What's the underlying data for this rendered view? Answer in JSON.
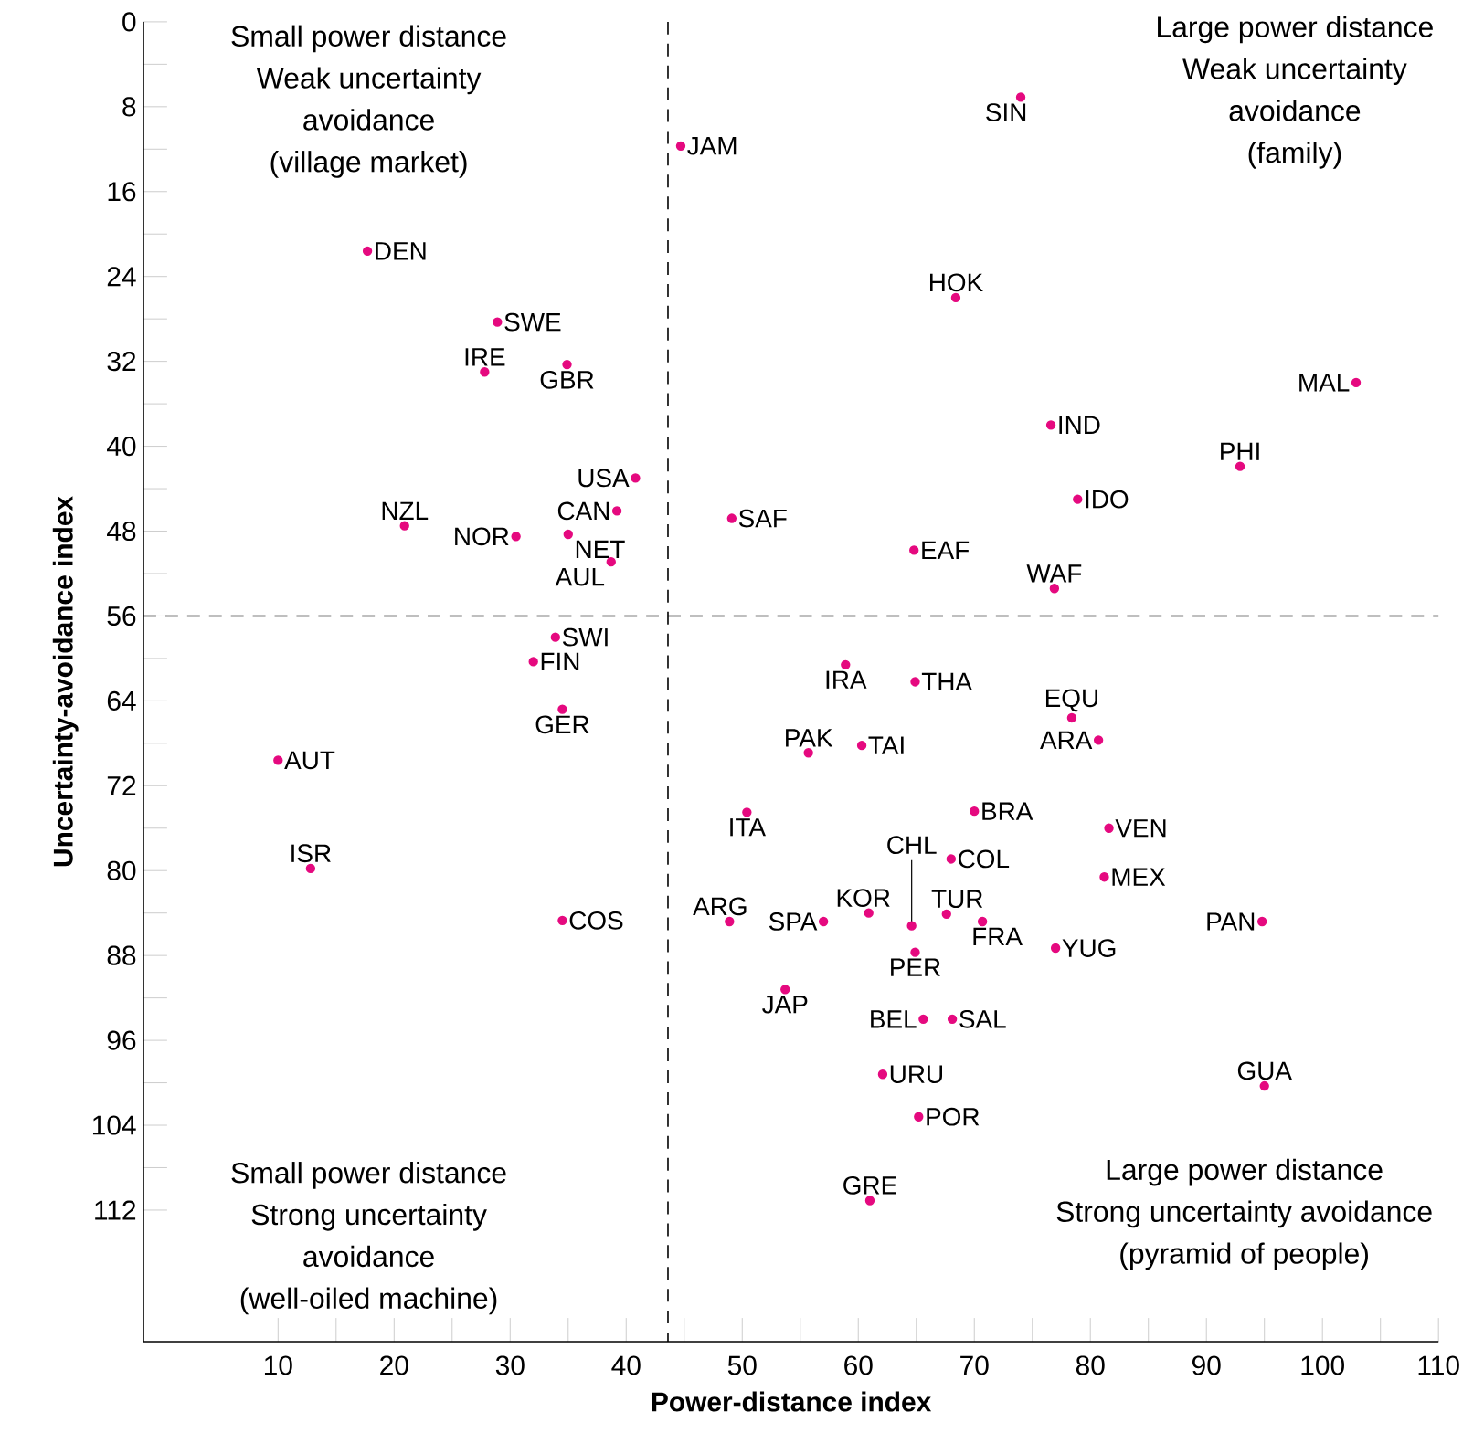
{
  "chart_data": {
    "type": "scatter",
    "xlabel": "Power-distance index",
    "ylabel": "Uncertainty-avoidance index",
    "xlim": [
      -1.6,
      110
    ],
    "ylim": [
      124.4,
      0
    ],
    "xticks": [
      10,
      {
        "value": 15,
        "label": null
      },
      20,
      {
        "value": 25,
        "label": null
      },
      30,
      {
        "value": 35,
        "label": null
      },
      40,
      {
        "value": 45,
        "label": null
      },
      50,
      {
        "value": 55,
        "label": null
      },
      60,
      {
        "value": 65,
        "label": null
      },
      70,
      {
        "value": 75,
        "label": null
      },
      80,
      {
        "value": 85,
        "label": null
      },
      90,
      {
        "value": 95,
        "label": null
      },
      100,
      {
        "value": 105,
        "label": null
      },
      110
    ],
    "yticks": [
      0,
      {
        "value": 4,
        "label": null
      },
      8,
      {
        "value": 12,
        "label": null
      },
      16,
      {
        "value": 20,
        "label": null
      },
      24,
      {
        "value": 28,
        "label": null
      },
      32,
      {
        "value": 36,
        "label": null
      },
      40,
      {
        "value": 44,
        "label": null
      },
      48,
      {
        "value": 52,
        "label": null
      },
      56,
      {
        "value": 60,
        "label": null
      },
      64,
      {
        "value": 68,
        "label": null
      },
      72,
      {
        "value": 76,
        "label": null
      },
      80,
      {
        "value": 84,
        "label": null
      },
      88,
      {
        "value": 92,
        "label": null
      },
      96,
      {
        "value": 100,
        "label": null
      },
      104,
      {
        "value": 108,
        "label": null
      },
      112
    ],
    "marker": "circle",
    "color": "#e5097f",
    "x": [
      44.7,
      17.7,
      28.9,
      27.8,
      34.9,
      40.8,
      39.2,
      20.9,
      30.5,
      35.0,
      38.7,
      49.1,
      74.0,
      68.4,
      102.9,
      76.6,
      92.9,
      78.9,
      64.8,
      76.9,
      33.9,
      32.0,
      34.5,
      10.0,
      12.8,
      34.5,
      48.9,
      50.4,
      58.9,
      64.9,
      78.4,
      80.7,
      55.7,
      60.3,
      70.0,
      81.6,
      68.0,
      81.2,
      60.9,
      57.0,
      64.6,
      67.6,
      70.7,
      94.8,
      77.0,
      64.9,
      53.7,
      65.6,
      68.1,
      62.1,
      95.0,
      65.2,
      61.0
    ],
    "values": [
      11.7,
      21.6,
      28.3,
      33.0,
      32.3,
      43.0,
      46.1,
      47.5,
      48.5,
      48.3,
      50.9,
      46.8,
      7.1,
      26.0,
      34.0,
      38.0,
      41.9,
      45.0,
      49.8,
      53.4,
      58.0,
      60.3,
      64.8,
      69.6,
      79.8,
      84.7,
      84.8,
      74.5,
      60.6,
      62.2,
      65.6,
      67.7,
      68.9,
      68.2,
      74.4,
      76.0,
      78.9,
      80.6,
      84.0,
      84.8,
      85.2,
      84.1,
      84.8,
      84.8,
      87.3,
      87.7,
      91.2,
      94.0,
      94.0,
      99.2,
      100.3,
      103.2,
      111.1
    ],
    "ref_lines": [
      {
        "axis": "x",
        "value": 43.6,
        "color": "#000000",
        "line_style": "dashed"
      },
      {
        "axis": "y",
        "value": 56,
        "color": "#000000",
        "line_style": "dashed"
      }
    ],
    "annotations": [
      {
        "text": "JAM",
        "x": 44.7,
        "y": 11.7
      },
      {
        "text": "DEN",
        "x": 17.7,
        "y": 21.6
      },
      {
        "text": "SWE",
        "x": 28.9,
        "y": 28.3
      },
      {
        "text": "IRE",
        "x": 27.8,
        "y": 33.0
      },
      {
        "text": "GBR",
        "x": 34.9,
        "y": 32.3
      },
      {
        "text": "USA",
        "x": 40.8,
        "y": 43.0
      },
      {
        "text": "CAN",
        "x": 39.2,
        "y": 46.1
      },
      {
        "text": "NZL",
        "x": 20.9,
        "y": 47.5
      },
      {
        "text": "NOR",
        "x": 30.5,
        "y": 48.5
      },
      {
        "text": "NET",
        "x": 35.0,
        "y": 48.3
      },
      {
        "text": "AUL",
        "x": 38.7,
        "y": 50.9
      },
      {
        "text": "SAF",
        "x": 49.1,
        "y": 46.8
      },
      {
        "text": "SIN",
        "x": 74.0,
        "y": 7.1
      },
      {
        "text": "HOK",
        "x": 68.4,
        "y": 26.0
      },
      {
        "text": "MAL",
        "x": 102.9,
        "y": 34.0
      },
      {
        "text": "IND",
        "x": 76.6,
        "y": 38.0
      },
      {
        "text": "PHI",
        "x": 92.9,
        "y": 41.9
      },
      {
        "text": "IDO",
        "x": 78.9,
        "y": 45.0
      },
      {
        "text": "EAF",
        "x": 64.8,
        "y": 49.8
      },
      {
        "text": "WAF",
        "x": 76.9,
        "y": 53.4
      },
      {
        "text": "SWI",
        "x": 33.9,
        "y": 58.0
      },
      {
        "text": "FIN",
        "x": 32.0,
        "y": 60.3
      },
      {
        "text": "GER",
        "x": 34.5,
        "y": 64.8
      },
      {
        "text": "AUT",
        "x": 10.0,
        "y": 69.6
      },
      {
        "text": "ISR",
        "x": 12.8,
        "y": 79.8
      },
      {
        "text": "COS",
        "x": 34.5,
        "y": 84.7
      },
      {
        "text": "ARG",
        "x": 48.9,
        "y": 84.8
      },
      {
        "text": "ITA",
        "x": 50.4,
        "y": 74.5
      },
      {
        "text": "IRA",
        "x": 58.9,
        "y": 60.6
      },
      {
        "text": "THA",
        "x": 64.9,
        "y": 62.2
      },
      {
        "text": "EQU",
        "x": 78.4,
        "y": 65.6
      },
      {
        "text": "ARA",
        "x": 80.7,
        "y": 67.7
      },
      {
        "text": "PAK",
        "x": 55.7,
        "y": 68.9
      },
      {
        "text": "TAI",
        "x": 60.3,
        "y": 68.2
      },
      {
        "text": "BRA",
        "x": 70.0,
        "y": 74.4
      },
      {
        "text": "VEN",
        "x": 81.6,
        "y": 76.0
      },
      {
        "text": "COL",
        "x": 68.0,
        "y": 78.9
      },
      {
        "text": "MEX",
        "x": 81.2,
        "y": 80.6
      },
      {
        "text": "KOR",
        "x": 60.9,
        "y": 84.0
      },
      {
        "text": "SPA",
        "x": 57.0,
        "y": 84.8
      },
      {
        "text": "CHL",
        "x": 64.6,
        "y": 85.2
      },
      {
        "text": "TUR",
        "x": 67.6,
        "y": 84.1
      },
      {
        "text": "FRA",
        "x": 70.7,
        "y": 84.8
      },
      {
        "text": "PAN",
        "x": 94.8,
        "y": 84.8
      },
      {
        "text": "YUG",
        "x": 77.0,
        "y": 87.3
      },
      {
        "text": "PER",
        "x": 64.9,
        "y": 87.7
      },
      {
        "text": "JAP",
        "x": 53.7,
        "y": 91.2
      },
      {
        "text": "BEL",
        "x": 65.6,
        "y": 94.0
      },
      {
        "text": "SAL",
        "x": 68.1,
        "y": 94.0
      },
      {
        "text": "URU",
        "x": 62.1,
        "y": 99.2
      },
      {
        "text": "GUA",
        "x": 95.0,
        "y": 100.3
      },
      {
        "text": "POR",
        "x": 65.2,
        "y": 103.2
      },
      {
        "text": "GRE",
        "x": 61.0,
        "y": 111.1
      },
      "Small power distance",
      "Weak uncertainty",
      "avoidance",
      "(village market)",
      "Large power distance",
      "Weak uncertainty",
      "avoidance",
      "(family)",
      "Small power distance",
      "Strong uncertainty",
      "avoidance",
      "(well-oiled machine)",
      "Large power distance",
      "Strong uncertainty avoidance",
      "(pyramid of people)"
    ]
  }
}
